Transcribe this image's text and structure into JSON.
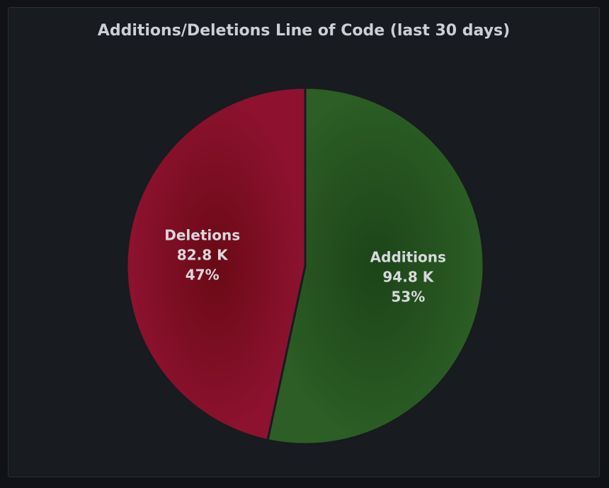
{
  "panel": {
    "title": "Additions/Deletions Line of Code (last 30 days)"
  },
  "chart_data": {
    "type": "pie",
    "title": "Additions/Deletions Line of Code (last 30 days)",
    "slices": [
      {
        "name": "Additions",
        "value": 94800,
        "value_label": "94.8 K",
        "percent_label": "53%",
        "color": "#2a5c24"
      },
      {
        "name": "Deletions",
        "value": 82800,
        "value_label": "82.8 K",
        "percent_label": "47%",
        "color": "#8a1230"
      }
    ]
  }
}
